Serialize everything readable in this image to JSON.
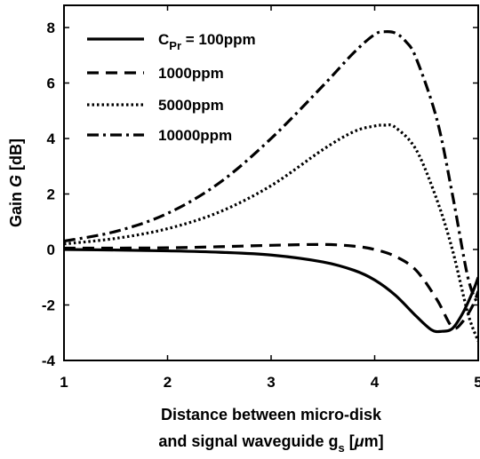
{
  "chart_data": {
    "type": "line",
    "xlabel_line1": "Distance between micro-disk",
    "xlabel_line2_prefix": "and signal waveguide g",
    "xlabel_line2_sub": "s",
    "xlabel_line2_suffix_pre": " [",
    "xlabel_line2_mu": "μ",
    "xlabel_line2_suffix_post": "m]",
    "ylabel_prefix": "Gain ",
    "ylabel_italic": "G",
    "ylabel_suffix": " [dB]",
    "xlim": [
      1,
      5
    ],
    "ylim": [
      -4,
      8.8
    ],
    "xticks": [
      1,
      2,
      3,
      4,
      5
    ],
    "xtick_labels": [
      "1",
      "2",
      "3",
      "4",
      "5"
    ],
    "yticks": [
      -4,
      -2,
      0,
      2,
      4,
      6,
      8
    ],
    "ytick_labels": [
      "-4",
      "-2",
      "0",
      "2",
      "4",
      "6",
      "8"
    ],
    "grid": false,
    "legend_position": "top-left",
    "legend_first_prefix": "C",
    "legend_first_sub": "Pr",
    "legend_first_suffix": " = 100ppm",
    "series": [
      {
        "name": "C_Pr = 100ppm",
        "dash": "solid",
        "x": [
          1.0,
          1.5,
          2.0,
          2.5,
          3.0,
          3.5,
          3.8,
          4.0,
          4.2,
          4.4,
          4.55,
          4.65,
          4.75,
          4.85,
          4.95,
          5.0
        ],
        "y": [
          0.0,
          -0.02,
          -0.05,
          -0.1,
          -0.2,
          -0.45,
          -0.75,
          -1.1,
          -1.65,
          -2.4,
          -2.9,
          -2.95,
          -2.85,
          -2.3,
          -1.5,
          -1.0
        ]
      },
      {
        "name": "1000ppm",
        "dash": "dashed",
        "x": [
          1.0,
          1.5,
          2.0,
          2.5,
          3.0,
          3.5,
          3.8,
          4.0,
          4.2,
          4.4,
          4.6,
          4.75,
          4.85,
          4.95,
          5.0
        ],
        "y": [
          0.05,
          0.05,
          0.06,
          0.1,
          0.15,
          0.18,
          0.12,
          0.0,
          -0.25,
          -0.75,
          -1.8,
          -2.8,
          -2.6,
          -2.0,
          -1.5
        ]
      },
      {
        "name": "5000ppm",
        "dash": "dotted",
        "x": [
          1.0,
          1.5,
          2.0,
          2.5,
          3.0,
          3.5,
          3.8,
          4.0,
          4.1,
          4.2,
          4.4,
          4.6,
          4.75,
          4.9,
          5.0
        ],
        "y": [
          0.2,
          0.4,
          0.75,
          1.35,
          2.3,
          3.6,
          4.25,
          4.45,
          4.48,
          4.4,
          3.6,
          1.8,
          0.0,
          -2.3,
          -3.3
        ]
      },
      {
        "name": "10000ppm",
        "dash": "dashdot",
        "x": [
          1.0,
          1.5,
          2.0,
          2.5,
          3.0,
          3.5,
          3.8,
          4.0,
          4.1,
          4.2,
          4.3,
          4.4,
          4.6,
          4.75,
          4.9,
          5.0
        ],
        "y": [
          0.3,
          0.65,
          1.3,
          2.4,
          4.0,
          5.9,
          7.1,
          7.75,
          7.85,
          7.8,
          7.5,
          6.9,
          4.7,
          2.0,
          -1.0,
          -2.0
        ]
      }
    ]
  }
}
